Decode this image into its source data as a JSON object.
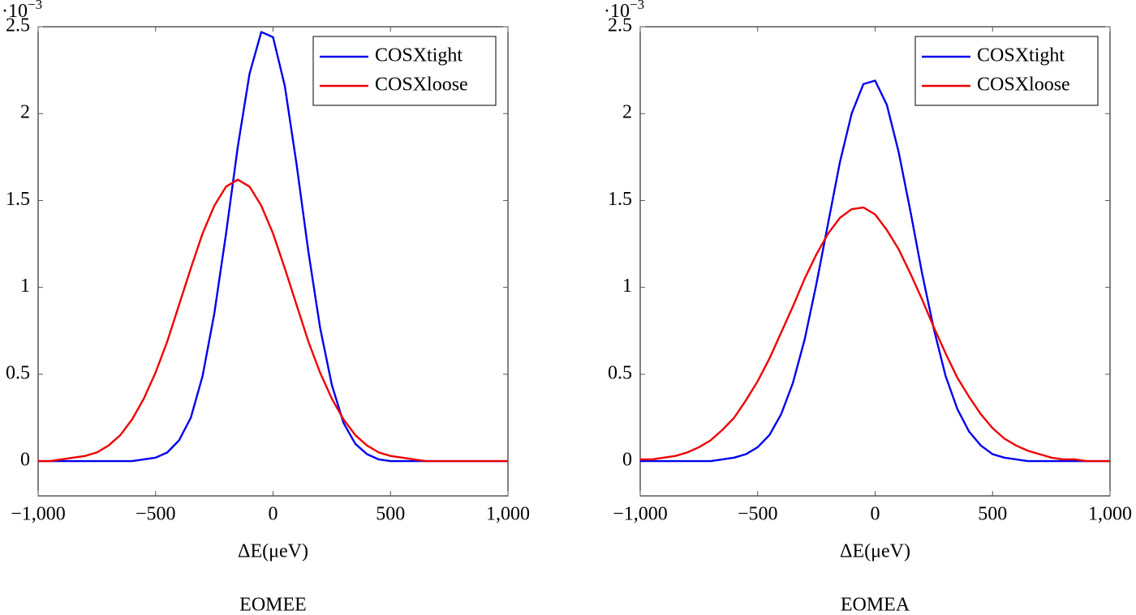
{
  "chart_data": [
    {
      "type": "line",
      "title": "EOMEE",
      "xlabel": "ΔE(μeV)",
      "y_multiplier": {
        "base": "·10",
        "exponent": "−3"
      },
      "legend": "upper right",
      "x": [
        -1000,
        -950,
        -900,
        -850,
        -800,
        -750,
        -700,
        -650,
        -600,
        -550,
        -500,
        -450,
        -400,
        -350,
        -300,
        -250,
        -200,
        -150,
        -100,
        -50,
        0,
        50,
        100,
        150,
        200,
        250,
        300,
        350,
        400,
        450,
        500,
        550,
        600,
        650,
        700,
        750,
        800,
        850,
        900,
        950,
        1000
      ],
      "series": [
        {
          "name": "COSXtight",
          "color": "#0000ee",
          "values": [
            0,
            0,
            0,
            0,
            0,
            0,
            0,
            0,
            0,
            0.01,
            0.02,
            0.05,
            0.12,
            0.25,
            0.49,
            0.85,
            1.31,
            1.81,
            2.23,
            2.47,
            2.44,
            2.16,
            1.71,
            1.21,
            0.77,
            0.44,
            0.22,
            0.1,
            0.04,
            0.01,
            0,
            0,
            0,
            0,
            0,
            0,
            0,
            0,
            0,
            0,
            0
          ]
        },
        {
          "name": "COSXloose",
          "color": "#ee0000",
          "values": [
            0,
            0,
            0.01,
            0.02,
            0.03,
            0.05,
            0.09,
            0.15,
            0.24,
            0.36,
            0.51,
            0.69,
            0.9,
            1.11,
            1.31,
            1.47,
            1.58,
            1.62,
            1.58,
            1.47,
            1.31,
            1.11,
            0.9,
            0.69,
            0.51,
            0.36,
            0.24,
            0.15,
            0.09,
            0.05,
            0.03,
            0.02,
            0.01,
            0,
            0,
            0,
            0,
            0,
            0,
            0,
            0
          ]
        }
      ],
      "xlim": [
        -1000,
        1000
      ],
      "xticks": [
        {
          "value": -1000,
          "label": "−1,000"
        },
        {
          "value": -500,
          "label": "−500"
        },
        0,
        500,
        {
          "value": 1000,
          "label": "1,000"
        }
      ],
      "ylim": [
        -0.2,
        2.5
      ],
      "yticks": [
        0,
        0.5,
        1,
        1.5,
        2,
        2.5
      ]
    },
    {
      "type": "line",
      "title": "EOMEA",
      "xlabel": "ΔE(μeV)",
      "y_multiplier": {
        "base": "·10",
        "exponent": "−3"
      },
      "legend": "upper right",
      "x": [
        -1000,
        -950,
        -900,
        -850,
        -800,
        -750,
        -700,
        -650,
        -600,
        -550,
        -500,
        -450,
        -400,
        -350,
        -300,
        -250,
        -200,
        -150,
        -100,
        -50,
        0,
        50,
        100,
        150,
        200,
        250,
        300,
        350,
        400,
        450,
        500,
        550,
        600,
        650,
        700,
        750,
        800,
        850,
        900,
        950,
        1000
      ],
      "series": [
        {
          "name": "COSXtight",
          "color": "#0000ee",
          "values": [
            0,
            0,
            0,
            0,
            0,
            0,
            0,
            0.01,
            0.02,
            0.04,
            0.08,
            0.15,
            0.27,
            0.45,
            0.7,
            1.02,
            1.37,
            1.72,
            2.0,
            2.17,
            2.19,
            2.05,
            1.78,
            1.44,
            1.08,
            0.76,
            0.49,
            0.3,
            0.17,
            0.09,
            0.04,
            0.02,
            0.01,
            0,
            0,
            0,
            0,
            0,
            0,
            0,
            0
          ]
        },
        {
          "name": "COSXloose",
          "color": "#ee0000",
          "values": [
            0.01,
            0.01,
            0.02,
            0.03,
            0.05,
            0.08,
            0.12,
            0.18,
            0.25,
            0.35,
            0.46,
            0.59,
            0.74,
            0.89,
            1.05,
            1.19,
            1.31,
            1.4,
            1.45,
            1.46,
            1.42,
            1.33,
            1.22,
            1.08,
            0.93,
            0.77,
            0.62,
            0.48,
            0.37,
            0.27,
            0.19,
            0.13,
            0.09,
            0.06,
            0.04,
            0.02,
            0.01,
            0.01,
            0,
            0,
            0
          ]
        }
      ],
      "xlim": [
        -1000,
        1000
      ],
      "xticks": [
        {
          "value": -1000,
          "label": "−1,000"
        },
        {
          "value": -500,
          "label": "−500"
        },
        0,
        500,
        {
          "value": 1000,
          "label": "1,000"
        }
      ],
      "ylim": [
        -0.2,
        2.5
      ],
      "yticks": [
        0,
        0.5,
        1,
        1.5,
        2,
        2.5
      ]
    }
  ]
}
